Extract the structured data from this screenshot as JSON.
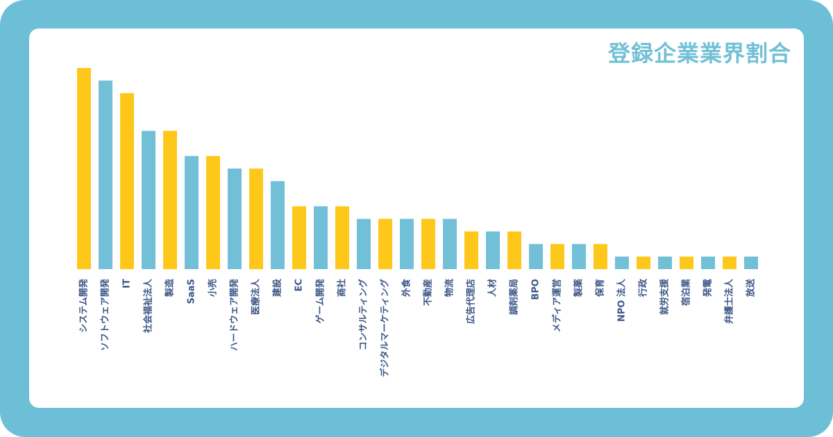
{
  "colors": {
    "frame": "#6cbfd6",
    "background": "#ffffff",
    "yellow": "#fec81a",
    "blue": "#72c0d7",
    "title": "#72c0d7",
    "label": "#3b5687"
  },
  "chart_data": {
    "type": "bar",
    "title": "登録企業業界割合",
    "xlabel": "",
    "ylabel": "",
    "ylim": [
      0,
      16
    ],
    "grid": false,
    "legend": "none",
    "categories": [
      "システム開発",
      "ソフトウェア開発",
      "IT",
      "社会福祉法人",
      "製造",
      "SaaS",
      "小売",
      "ハードウェア開発",
      "医療法人",
      "建設",
      "EC",
      "ゲーム開発",
      "商社",
      "コンサルティング",
      "デジタルマーケティング",
      "外食",
      "不動産",
      "物流",
      "広告代理店",
      "人材",
      "調剤薬局",
      "BPO",
      "メディア運営",
      "製薬",
      "保育",
      "NPO 法人",
      "行政",
      "就労支援",
      "宿泊業",
      "発電",
      "弁護士法人",
      "放送"
    ],
    "values": [
      16,
      15,
      14,
      11,
      11,
      9,
      9,
      8,
      8,
      7,
      5,
      5,
      5,
      4,
      4,
      4,
      4,
      4,
      3,
      3,
      3,
      2,
      2,
      2,
      2,
      1,
      1,
      1,
      1,
      1,
      1,
      1
    ],
    "bar_colors": [
      "yellow",
      "blue",
      "yellow",
      "blue",
      "yellow",
      "blue",
      "yellow",
      "blue",
      "yellow",
      "blue",
      "yellow",
      "blue",
      "yellow",
      "blue",
      "yellow",
      "blue",
      "yellow",
      "blue",
      "yellow",
      "blue",
      "yellow",
      "blue",
      "yellow",
      "blue",
      "yellow",
      "blue",
      "yellow",
      "blue",
      "yellow",
      "blue",
      "yellow",
      "blue"
    ]
  }
}
